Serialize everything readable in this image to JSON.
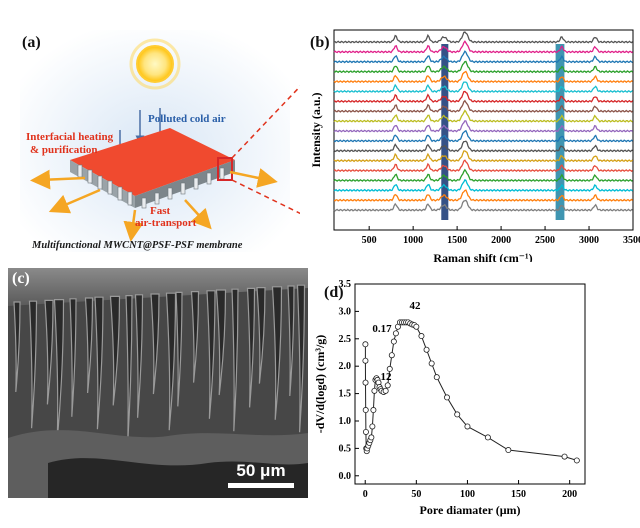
{
  "panels": {
    "a": {
      "label": "(a)",
      "text_polluted": "Polluted cold air",
      "text_heating_1": "Interfacial heating",
      "text_heating_2": "& purification",
      "text_fast_1": "Fast",
      "text_fast_2": "air-transport",
      "caption": "Multifunctional MWCNT@PSF-PSF membrane"
    },
    "b": {
      "label": "(b)",
      "xlabel": "Raman shift (cm⁻¹)",
      "ylabel": "Intensity (a.u.)"
    },
    "c": {
      "label": "(c)",
      "scale_label": "50 μm"
    },
    "d": {
      "label": "(d)",
      "xlabel": "Pore diamater (μm)",
      "ylabel": "-dV/d(logd) (cm³/g)",
      "annotations": [
        "0.17",
        "12",
        "42"
      ]
    }
  },
  "chart_data": [
    {
      "type": "line",
      "panel": "b",
      "xlabel": "Raman shift (cm-1)",
      "ylabel": "Intensity (a.u.)",
      "xlim": [
        100,
        3500
      ],
      "x_ticks": [
        500,
        1000,
        1500,
        2000,
        2500,
        3000,
        3500
      ],
      "y_ticks": [],
      "highlight_bands": [
        [
          1320,
          1400
        ],
        [
          2620,
          2720
        ]
      ],
      "peaks": [
        800,
        1170,
        1350,
        1590,
        2690,
        3070
      ],
      "series_colors": [
        "#555555",
        "#e0218a",
        "#1f77b4",
        "#2ca02c",
        "#ff7f0e",
        "#17becf",
        "#d62728",
        "#8c564b",
        "#bcbd22",
        "#9467bd",
        "#1f77b4",
        "#555555",
        "#d4a017",
        "#e74c3c",
        "#2ca02c",
        "#00bcd4",
        "#ff7f0e",
        "#7f7f7f"
      ]
    },
    {
      "type": "line",
      "panel": "d",
      "xlabel": "Pore diamater (μm)",
      "ylabel": "-dV/d(logd) (cm3/g)",
      "xlim": [
        -10,
        215
      ],
      "ylim": [
        -0.15,
        3.5
      ],
      "x_ticks": [
        0,
        50,
        100,
        150,
        200
      ],
      "y_ticks": [
        0.0,
        0.5,
        1.0,
        1.5,
        2.0,
        2.5,
        3.0,
        3.5
      ],
      "series": [
        {
          "x": [
            0.17,
            0.2,
            0.3,
            0.5,
            0.7,
            1,
            1.5,
            2,
            3,
            4,
            5,
            6,
            7,
            8,
            9,
            10,
            11,
            12,
            13,
            14,
            15,
            16,
            18,
            20,
            22,
            24,
            26,
            28,
            30,
            32,
            34,
            36,
            38,
            40,
            42,
            44,
            46,
            48,
            50,
            55,
            60,
            65,
            70,
            80,
            90,
            100,
            120,
            140,
            195,
            207
          ],
          "y": [
            2.4,
            2.1,
            1.7,
            1.2,
            0.8,
            0.5,
            0.45,
            0.5,
            0.55,
            0.6,
            0.65,
            0.7,
            0.9,
            1.2,
            1.55,
            1.75,
            1.78,
            1.75,
            1.7,
            1.62,
            1.58,
            1.55,
            1.53,
            1.55,
            1.65,
            1.95,
            2.2,
            2.45,
            2.6,
            2.72,
            2.8,
            2.8,
            2.8,
            2.8,
            2.8,
            2.78,
            2.76,
            2.75,
            2.72,
            2.55,
            2.3,
            2.05,
            1.8,
            1.43,
            1.12,
            0.9,
            0.7,
            0.47,
            0.35,
            0.28
          ]
        }
      ]
    }
  ]
}
